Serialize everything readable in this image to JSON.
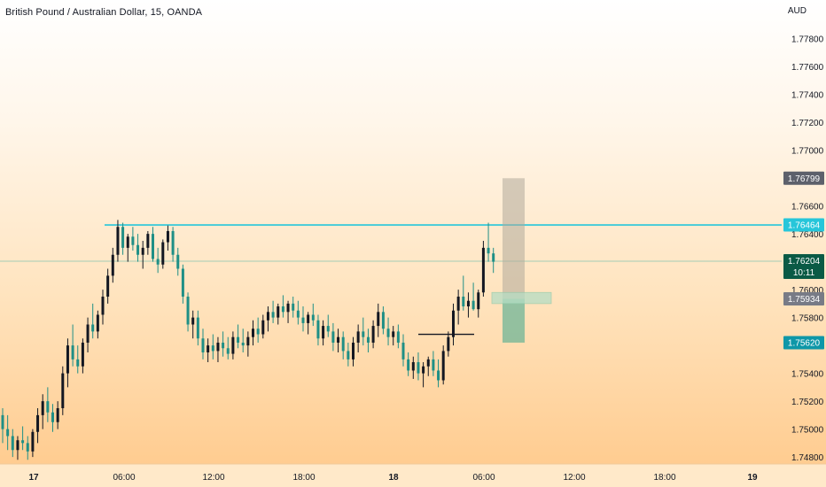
{
  "chart_data": {
    "type": "candlestick",
    "title": "British Pound / Australian Dollar, 15, OANDA",
    "currency": "AUD",
    "ylim": [
      1.7475,
      1.7795
    ],
    "y_ticks": [
      "1.74800",
      "1.75000",
      "1.75200",
      "1.75400",
      "1.75800",
      "1.76000",
      "1.76400",
      "1.76600",
      "1.77000",
      "1.77200",
      "1.77400",
      "1.77600",
      "1.77800"
    ],
    "x_ticks": [
      {
        "label": "17",
        "bold": true
      },
      {
        "label": "06:00",
        "bold": false
      },
      {
        "label": "12:00",
        "bold": false
      },
      {
        "label": "18:00",
        "bold": false
      },
      {
        "label": "18",
        "bold": true
      },
      {
        "label": "06:00",
        "bold": false
      },
      {
        "label": "12:00",
        "bold": false
      },
      {
        "label": "18:00",
        "bold": false
      },
      {
        "label": "19",
        "bold": true
      }
    ],
    "price_badges": [
      {
        "value": "1.76799",
        "color": "#5d606b"
      },
      {
        "value": "1.76464",
        "color": "#26c6da",
        "text_color": "#131722"
      },
      {
        "value": "1.76204",
        "sub": "10:11",
        "color": "#0a5a45"
      },
      {
        "value": "1.75934",
        "color": "#787b86"
      },
      {
        "value": "1.75620",
        "color": "#0e97a8"
      }
    ],
    "resistance_level": 1.76464,
    "current_price": 1.76204,
    "candles": [
      [
        1.751,
        1.7515,
        1.749,
        1.75
      ],
      [
        1.75,
        1.751,
        1.7485,
        1.7495
      ],
      [
        1.7495,
        1.75,
        1.748,
        1.7485
      ],
      [
        1.7485,
        1.7495,
        1.7478,
        1.7492
      ],
      [
        1.7492,
        1.7502,
        1.7485,
        1.749
      ],
      [
        1.749,
        1.7495,
        1.7478,
        1.7484
      ],
      [
        1.7484,
        1.75,
        1.748,
        1.7498
      ],
      [
        1.7498,
        1.7515,
        1.749,
        1.751
      ],
      [
        1.751,
        1.7525,
        1.75,
        1.752
      ],
      [
        1.752,
        1.753,
        1.7505,
        1.7512
      ],
      [
        1.7512,
        1.7518,
        1.7498,
        1.7505
      ],
      [
        1.7505,
        1.752,
        1.75,
        1.7515
      ],
      [
        1.7515,
        1.7545,
        1.751,
        1.754
      ],
      [
        1.754,
        1.7565,
        1.753,
        1.756
      ],
      [
        1.756,
        1.7575,
        1.7545,
        1.755
      ],
      [
        1.755,
        1.756,
        1.754,
        1.7545
      ],
      [
        1.7545,
        1.7565,
        1.754,
        1.7562
      ],
      [
        1.7562,
        1.758,
        1.7555,
        1.7575
      ],
      [
        1.7575,
        1.759,
        1.7565,
        1.757
      ],
      [
        1.757,
        1.7585,
        1.7565,
        1.7582
      ],
      [
        1.7582,
        1.76,
        1.7575,
        1.7595
      ],
      [
        1.7595,
        1.7615,
        1.759,
        1.761
      ],
      [
        1.761,
        1.763,
        1.7605,
        1.7625
      ],
      [
        1.7625,
        1.765,
        1.762,
        1.7645
      ],
      [
        1.7645,
        1.7648,
        1.7625,
        1.763
      ],
      [
        1.763,
        1.764,
        1.762,
        1.7638
      ],
      [
        1.7638,
        1.7645,
        1.7628,
        1.7632
      ],
      [
        1.7632,
        1.764,
        1.762,
        1.7625
      ],
      [
        1.7625,
        1.7635,
        1.7615,
        1.763
      ],
      [
        1.763,
        1.7642,
        1.7625,
        1.764
      ],
      [
        1.764,
        1.7645,
        1.762,
        1.7622
      ],
      [
        1.7622,
        1.763,
        1.7612,
        1.7618
      ],
      [
        1.7618,
        1.7636,
        1.7615,
        1.7634
      ],
      [
        1.7634,
        1.7646,
        1.7628,
        1.7642
      ],
      [
        1.7642,
        1.7645,
        1.762,
        1.7625
      ],
      [
        1.7625,
        1.763,
        1.761,
        1.7615
      ],
      [
        1.7615,
        1.7618,
        1.759,
        1.7595
      ],
      [
        1.7595,
        1.7598,
        1.757,
        1.7575
      ],
      [
        1.7575,
        1.7585,
        1.7565,
        1.758
      ],
      [
        1.758,
        1.7585,
        1.756,
        1.7565
      ],
      [
        1.7565,
        1.7572,
        1.755,
        1.7555
      ],
      [
        1.7555,
        1.7565,
        1.7548,
        1.756
      ],
      [
        1.756,
        1.7568,
        1.755,
        1.7556
      ],
      [
        1.7556,
        1.7566,
        1.7548,
        1.7562
      ],
      [
        1.7562,
        1.757,
        1.7552,
        1.7558
      ],
      [
        1.7558,
        1.7566,
        1.755,
        1.7554
      ],
      [
        1.7554,
        1.757,
        1.755,
        1.7566
      ],
      [
        1.7566,
        1.7575,
        1.7558,
        1.7562
      ],
      [
        1.7562,
        1.7572,
        1.7555,
        1.756
      ],
      [
        1.756,
        1.757,
        1.7552,
        1.7566
      ],
      [
        1.7566,
        1.7578,
        1.756,
        1.7572
      ],
      [
        1.7572,
        1.758,
        1.7562,
        1.7568
      ],
      [
        1.7568,
        1.7582,
        1.7565,
        1.7578
      ],
      [
        1.7578,
        1.7588,
        1.757,
        1.7584
      ],
      [
        1.7584,
        1.7592,
        1.7576,
        1.758
      ],
      [
        1.758,
        1.759,
        1.7575,
        1.7588
      ],
      [
        1.7588,
        1.7596,
        1.758,
        1.7584
      ],
      [
        1.7584,
        1.7592,
        1.7576,
        1.759
      ],
      [
        1.759,
        1.7595,
        1.758,
        1.7585
      ],
      [
        1.7585,
        1.7592,
        1.7575,
        1.758
      ],
      [
        1.758,
        1.7588,
        1.757,
        1.7576
      ],
      [
        1.7576,
        1.7584,
        1.7568,
        1.7582
      ],
      [
        1.7582,
        1.759,
        1.7574,
        1.7578
      ],
      [
        1.7578,
        1.7582,
        1.756,
        1.7565
      ],
      [
        1.7565,
        1.7578,
        1.756,
        1.7574
      ],
      [
        1.7574,
        1.7582,
        1.7566,
        1.757
      ],
      [
        1.757,
        1.7576,
        1.7556,
        1.7562
      ],
      [
        1.7562,
        1.7572,
        1.7555,
        1.7566
      ],
      [
        1.7566,
        1.757,
        1.755,
        1.7556
      ],
      [
        1.7556,
        1.7562,
        1.7545,
        1.755
      ],
      [
        1.755,
        1.7566,
        1.7545,
        1.7562
      ],
      [
        1.7562,
        1.7575,
        1.7555,
        1.757
      ],
      [
        1.757,
        1.758,
        1.756,
        1.7566
      ],
      [
        1.7566,
        1.7572,
        1.7555,
        1.7562
      ],
      [
        1.7562,
        1.7578,
        1.7558,
        1.7574
      ],
      [
        1.7574,
        1.759,
        1.7566,
        1.7584
      ],
      [
        1.7584,
        1.7588,
        1.7568,
        1.7572
      ],
      [
        1.7572,
        1.758,
        1.756,
        1.7566
      ],
      [
        1.7566,
        1.7574,
        1.756,
        1.757
      ],
      [
        1.757,
        1.7575,
        1.7558,
        1.7562
      ],
      [
        1.7562,
        1.7568,
        1.7545,
        1.755
      ],
      [
        1.755,
        1.7555,
        1.7538,
        1.7542
      ],
      [
        1.7542,
        1.7552,
        1.7536,
        1.7548
      ],
      [
        1.7548,
        1.7555,
        1.7535,
        1.754
      ],
      [
        1.754,
        1.7548,
        1.753,
        1.7545
      ],
      [
        1.7545,
        1.7552,
        1.7538,
        1.755
      ],
      [
        1.755,
        1.7556,
        1.7538,
        1.7542
      ],
      [
        1.7542,
        1.755,
        1.753,
        1.7535
      ],
      [
        1.7535,
        1.756,
        1.7532,
        1.7556
      ],
      [
        1.7556,
        1.757,
        1.7552,
        1.7566
      ],
      [
        1.7566,
        1.759,
        1.756,
        1.7585
      ],
      [
        1.7585,
        1.76,
        1.7575,
        1.7595
      ],
      [
        1.7595,
        1.761,
        1.7585,
        1.7588
      ],
      [
        1.7588,
        1.7598,
        1.758,
        1.7592
      ],
      [
        1.7592,
        1.7605,
        1.7585,
        1.7586
      ],
      [
        1.7586,
        1.76,
        1.758,
        1.7598
      ],
      [
        1.7598,
        1.7635,
        1.7595,
        1.763
      ],
      [
        1.763,
        1.7648,
        1.762,
        1.7626
      ],
      [
        1.7626,
        1.763,
        1.7612,
        1.762
      ]
    ]
  }
}
